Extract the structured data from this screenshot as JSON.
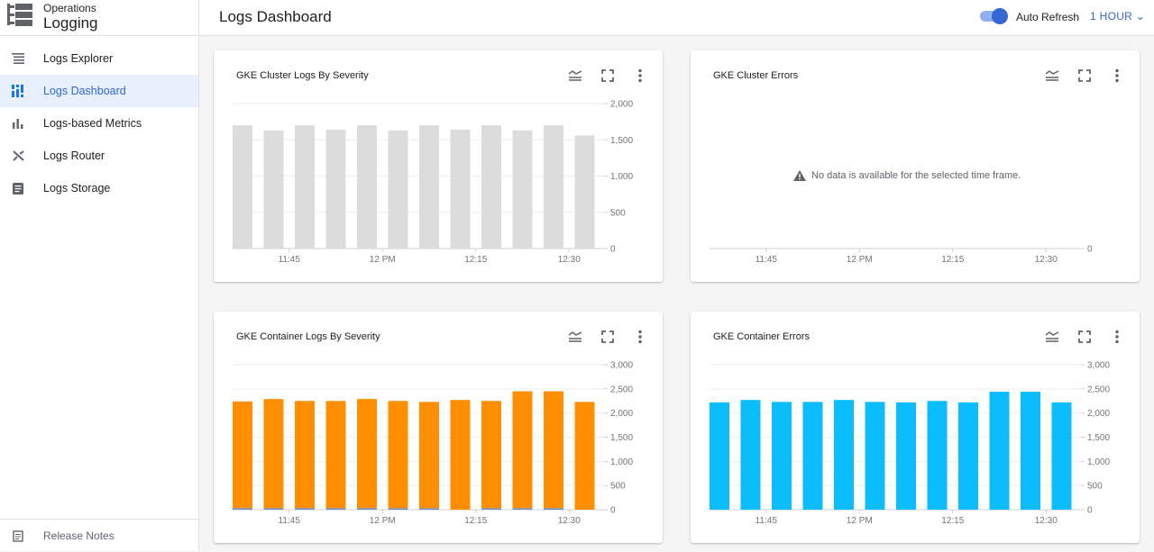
{
  "sidebar": {
    "brand_sub": "Operations",
    "brand_title": "Logging",
    "items": [
      {
        "label": "Logs Explorer",
        "icon": "list-icon"
      },
      {
        "label": "Logs Dashboard",
        "icon": "dashboard-icon",
        "active": true
      },
      {
        "label": "Logs-based Metrics",
        "icon": "bar-chart-icon"
      },
      {
        "label": "Logs Router",
        "icon": "shuffle-icon"
      },
      {
        "label": "Logs Storage",
        "icon": "storage-icon"
      }
    ],
    "release_notes": "Release Notes"
  },
  "header": {
    "title": "Logs Dashboard",
    "auto_refresh_label": "Auto Refresh",
    "auto_refresh_on": true,
    "time_range": "1 HOUR"
  },
  "colors": {
    "accent": "#3367d6",
    "gray_bar": "#dcdcdc",
    "orange": "#ff8f00",
    "cyan": "#0bbdfc",
    "blue_low": "#6a8fd8"
  },
  "cards": [
    {
      "title": "GKE Cluster Logs By Severity"
    },
    {
      "title": "GKE Cluster Errors",
      "no_data": "No data is available for the selected time frame."
    },
    {
      "title": "GKE Container Logs By Severity"
    },
    {
      "title": "GKE Container Errors"
    }
  ],
  "chart_data": [
    {
      "type": "bar",
      "title": "GKE Cluster Logs By Severity",
      "bar_starts": [
        "11:35",
        "11:40",
        "11:45",
        "11:50",
        "11:55",
        "12:00",
        "12:05",
        "12:10",
        "12:15",
        "12:20",
        "12:25",
        "12:30"
      ],
      "bar_minutes": 5,
      "series": [
        {
          "color": "#dcdcdc",
          "values": [
            1700,
            1630,
            1700,
            1640,
            1700,
            1630,
            1700,
            1640,
            1700,
            1630,
            1700,
            1560
          ]
        }
      ],
      "ylim": [
        0,
        2000
      ],
      "yticks": [
        "0",
        "500",
        "1,000",
        "1,500",
        "2,000"
      ],
      "ytick_values": [
        0,
        500,
        1000,
        1500,
        2000
      ],
      "xticks": [
        "11:45",
        "12 PM",
        "12:15",
        "12:30"
      ],
      "xtick_times": [
        "11:45",
        "12:00",
        "12:15",
        "12:30"
      ],
      "grid": true
    },
    {
      "type": "bar",
      "title": "GKE Cluster Errors",
      "bar_starts": [],
      "series": [],
      "ylim": [
        0,
        1
      ],
      "yticks": [
        "0"
      ],
      "ytick_values": [
        0
      ],
      "xticks": [
        "11:45",
        "12 PM",
        "12:15",
        "12:30"
      ],
      "xtick_times": [
        "11:45",
        "12:00",
        "12:15",
        "12:30"
      ],
      "grid": false
    },
    {
      "type": "bar",
      "stacked": true,
      "title": "GKE Container Logs By Severity",
      "bar_starts": [
        "11:35",
        "11:40",
        "11:45",
        "11:50",
        "11:55",
        "12:00",
        "12:05",
        "12:10",
        "12:15",
        "12:20",
        "12:25",
        "12:30"
      ],
      "bar_minutes": 5,
      "series": [
        {
          "color": "#6a8fd8",
          "values": [
            30,
            30,
            30,
            30,
            30,
            30,
            30,
            0,
            30,
            30,
            30,
            0
          ]
        },
        {
          "color": "#ff8f00",
          "values": [
            2210,
            2260,
            2220,
            2220,
            2260,
            2220,
            2200,
            2270,
            2220,
            2420,
            2420,
            2230
          ]
        }
      ],
      "ylim": [
        0,
        3000
      ],
      "yticks": [
        "0",
        "500",
        "1,000",
        "1,500",
        "2,000",
        "2,500",
        "3,000"
      ],
      "ytick_values": [
        0,
        500,
        1000,
        1500,
        2000,
        2500,
        3000
      ],
      "xticks": [
        "11:45",
        "12 PM",
        "12:15",
        "12:30"
      ],
      "xtick_times": [
        "11:45",
        "12:00",
        "12:15",
        "12:30"
      ],
      "grid": true
    },
    {
      "type": "bar",
      "title": "GKE Container Errors",
      "bar_starts": [
        "11:35",
        "11:40",
        "11:45",
        "11:50",
        "11:55",
        "12:00",
        "12:05",
        "12:10",
        "12:15",
        "12:20",
        "12:25",
        "12:30"
      ],
      "bar_minutes": 5,
      "series": [
        {
          "color": "#0bbdfc",
          "values": [
            2220,
            2270,
            2230,
            2230,
            2270,
            2230,
            2220,
            2250,
            2220,
            2440,
            2440,
            2220
          ]
        }
      ],
      "ylim": [
        0,
        3000
      ],
      "yticks": [
        "0",
        "500",
        "1,000",
        "1,500",
        "2,000",
        "2,500",
        "3,000"
      ],
      "ytick_values": [
        0,
        500,
        1000,
        1500,
        2000,
        2500,
        3000
      ],
      "xticks": [
        "11:45",
        "12 PM",
        "12:15",
        "12:30"
      ],
      "xtick_times": [
        "11:45",
        "12:00",
        "12:15",
        "12:30"
      ],
      "grid": true
    }
  ]
}
